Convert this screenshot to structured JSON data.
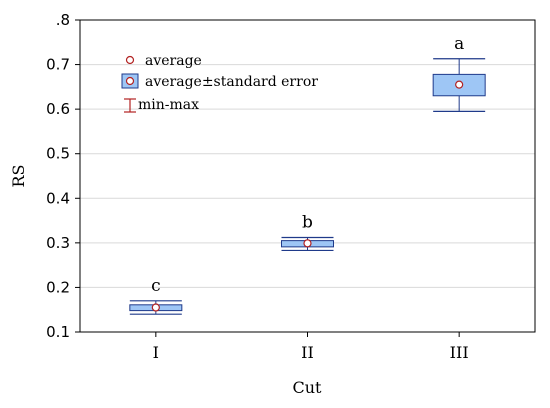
{
  "chart_data": {
    "type": "box",
    "xlabel": "Cut",
    "ylabel": "RS",
    "ylim": [
      0.1,
      0.8
    ],
    "yticks": [
      0.1,
      0.2,
      0.3,
      0.4,
      0.5,
      0.6,
      0.7,
      0.8
    ],
    "ytick_labels": [
      "0.1",
      "0.2",
      "0.3",
      "0.4",
      "0.5",
      "0.6",
      "0.7",
      ".8"
    ],
    "grid": true,
    "categories": [
      "I",
      "II",
      "III"
    ],
    "groups": [
      {
        "category": "I",
        "average": 0.155,
        "se_low": 0.148,
        "se_high": 0.161,
        "min": 0.14,
        "max": 0.17,
        "letter": "c"
      },
      {
        "category": "II",
        "average": 0.299,
        "se_low": 0.291,
        "se_high": 0.305,
        "min": 0.283,
        "max": 0.312,
        "letter": "b"
      },
      {
        "category": "III",
        "average": 0.655,
        "se_low": 0.63,
        "se_high": 0.678,
        "min": 0.595,
        "max": 0.713,
        "letter": "a"
      }
    ],
    "legend": {
      "position": "top-left",
      "entries": [
        {
          "symbol": "circle",
          "label": "average"
        },
        {
          "symbol": "box",
          "label": "average±standard error"
        },
        {
          "symbol": "whisker",
          "label": "min-max"
        }
      ]
    },
    "colors": {
      "box_fill": "#9ec6f5",
      "box_stroke": "#1f3a8a",
      "whisker": "#1f3a8a",
      "marker": "#b22222",
      "grid": "#d9d9d9",
      "axis": "#000000"
    }
  }
}
